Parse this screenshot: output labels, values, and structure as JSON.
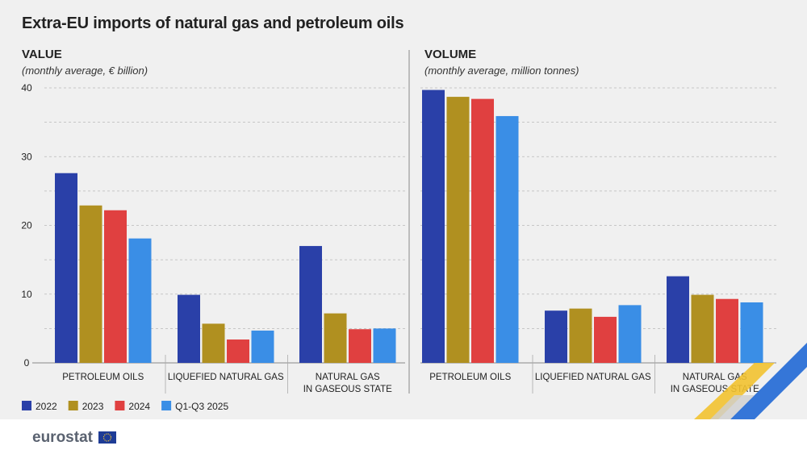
{
  "title": "Extra-EU imports of natural gas and petroleum oils",
  "logo": "eurostat",
  "colors": {
    "2022": "#2a40a8",
    "2023": "#b09020",
    "2024": "#e04040",
    "Q1-Q3 2025": "#3a8ee6"
  },
  "chart_data": [
    {
      "type": "bar",
      "title": "VALUE",
      "subtitle": "(monthly average, € billion)",
      "categories": [
        [
          "PETROLEUM OILS"
        ],
        [
          "LIQUEFIED NATURAL GAS"
        ],
        [
          "NATURAL GAS",
          "IN GASEOUS STATE"
        ]
      ],
      "series": [
        {
          "name": "2022",
          "values": [
            27.6,
            9.9,
            17.0
          ]
        },
        {
          "name": "2023",
          "values": [
            22.9,
            5.7,
            7.2
          ]
        },
        {
          "name": "2024",
          "values": [
            22.2,
            3.4,
            4.9
          ]
        },
        {
          "name": "Q1-Q3 2025",
          "values": [
            18.1,
            4.7,
            5.0
          ]
        }
      ],
      "ylim": [
        0,
        40
      ],
      "yticks": [
        0,
        10,
        20,
        30,
        40
      ],
      "grid": true
    },
    {
      "type": "bar",
      "title": "VOLUME",
      "subtitle": "(monthly average, million tonnes)",
      "categories": [
        [
          "PETROLEUM OILS"
        ],
        [
          "LIQUEFIED NATURAL GAS"
        ],
        [
          "NATURAL GAS",
          "IN GASEOUS STATE"
        ]
      ],
      "series": [
        {
          "name": "2022",
          "values": [
            39.7,
            7.6,
            12.6
          ]
        },
        {
          "name": "2023",
          "values": [
            38.7,
            7.9,
            9.9
          ]
        },
        {
          "name": "2024",
          "values": [
            38.4,
            6.7,
            9.3
          ]
        },
        {
          "name": "Q1-Q3 2025",
          "values": [
            35.9,
            8.4,
            8.8
          ]
        }
      ],
      "ylim": [
        0,
        40
      ],
      "grid": true
    }
  ],
  "legend": [
    "2022",
    "2023",
    "2024",
    "Q1-Q3 2025"
  ]
}
